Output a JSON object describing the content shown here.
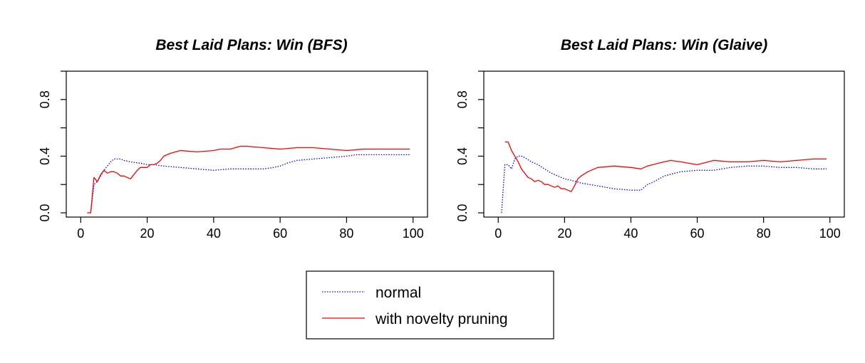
{
  "chart_data": [
    {
      "type": "line",
      "title": "Best Laid Plans: Win (BFS)",
      "xlabel": "",
      "ylabel": "",
      "xlim": [
        0,
        100
      ],
      "ylim": [
        -0.03,
        1.0
      ],
      "xticks": [
        0,
        20,
        40,
        60,
        80,
        100
      ],
      "yticks": [
        0.0,
        0.4,
        0.8
      ],
      "ytick_labels": [
        "0.0",
        "0.4",
        "0.8"
      ],
      "grid": false,
      "series": [
        {
          "name": "normal",
          "color": "#0000ff",
          "style": "dotted",
          "x": [
            2,
            3,
            4,
            5,
            6,
            7,
            8,
            9,
            10,
            11,
            12,
            13,
            15,
            18,
            20,
            22,
            25,
            30,
            35,
            40,
            45,
            50,
            55,
            58,
            60,
            62,
            65,
            70,
            75,
            80,
            83,
            86,
            90,
            95,
            99
          ],
          "y": [
            0.0,
            0.0,
            0.2,
            0.22,
            0.26,
            0.3,
            0.33,
            0.36,
            0.38,
            0.38,
            0.38,
            0.37,
            0.36,
            0.35,
            0.34,
            0.34,
            0.33,
            0.32,
            0.31,
            0.3,
            0.31,
            0.31,
            0.31,
            0.32,
            0.33,
            0.35,
            0.37,
            0.38,
            0.39,
            0.4,
            0.41,
            0.41,
            0.41,
            0.41,
            0.41
          ]
        },
        {
          "name": "with novelty pruning",
          "color": "#ff0000",
          "style": "solid",
          "x": [
            2,
            3,
            4,
            5,
            6,
            7,
            8,
            9,
            10,
            11,
            12,
            13,
            14,
            15,
            16,
            17,
            18,
            19,
            20,
            21,
            22,
            23,
            24,
            25,
            27,
            30,
            35,
            40,
            42,
            45,
            48,
            50,
            55,
            60,
            65,
            70,
            75,
            80,
            85,
            90,
            95,
            99
          ],
          "y": [
            0.0,
            0.0,
            0.25,
            0.22,
            0.27,
            0.3,
            0.28,
            0.29,
            0.29,
            0.28,
            0.26,
            0.26,
            0.25,
            0.24,
            0.27,
            0.3,
            0.32,
            0.32,
            0.32,
            0.34,
            0.34,
            0.35,
            0.37,
            0.4,
            0.42,
            0.44,
            0.43,
            0.44,
            0.45,
            0.45,
            0.47,
            0.47,
            0.46,
            0.45,
            0.46,
            0.46,
            0.45,
            0.44,
            0.45,
            0.45,
            0.45,
            0.45
          ]
        }
      ]
    },
    {
      "type": "line",
      "title": "Best Laid Plans: Win (Glaive)",
      "xlabel": "",
      "ylabel": "",
      "xlim": [
        0,
        100
      ],
      "ylim": [
        -0.03,
        1.0
      ],
      "xticks": [
        0,
        20,
        40,
        60,
        80,
        100
      ],
      "yticks": [
        0.0,
        0.4,
        0.8
      ],
      "ytick_labels": [
        "0.0",
        "0.4",
        "0.8"
      ],
      "grid": false,
      "series": [
        {
          "name": "normal",
          "color": "#0000ff",
          "style": "dotted",
          "x": [
            1,
            2,
            3,
            4,
            5,
            6,
            7,
            8,
            10,
            12,
            14,
            16,
            18,
            20,
            22,
            25,
            30,
            35,
            40,
            43,
            45,
            47,
            50,
            55,
            60,
            65,
            70,
            75,
            80,
            85,
            90,
            95,
            99
          ],
          "y": [
            0.0,
            0.34,
            0.34,
            0.31,
            0.38,
            0.4,
            0.4,
            0.39,
            0.36,
            0.34,
            0.31,
            0.28,
            0.26,
            0.24,
            0.23,
            0.21,
            0.19,
            0.17,
            0.16,
            0.16,
            0.2,
            0.22,
            0.26,
            0.29,
            0.3,
            0.3,
            0.32,
            0.33,
            0.33,
            0.32,
            0.32,
            0.31,
            0.31
          ]
        },
        {
          "name": "with novelty pruning",
          "color": "#ff0000",
          "style": "solid",
          "x": [
            2,
            3,
            4,
            5,
            6,
            7,
            8,
            9,
            10,
            11,
            12,
            13,
            14,
            15,
            16,
            17,
            18,
            19,
            20,
            21,
            22,
            23,
            24,
            25,
            27,
            30,
            35,
            40,
            43,
            45,
            50,
            52,
            55,
            60,
            65,
            70,
            75,
            80,
            85,
            90,
            95,
            99
          ],
          "y": [
            0.5,
            0.5,
            0.44,
            0.4,
            0.36,
            0.31,
            0.28,
            0.25,
            0.24,
            0.22,
            0.23,
            0.22,
            0.2,
            0.2,
            0.19,
            0.18,
            0.19,
            0.17,
            0.17,
            0.16,
            0.15,
            0.19,
            0.24,
            0.26,
            0.29,
            0.32,
            0.33,
            0.32,
            0.31,
            0.33,
            0.36,
            0.37,
            0.36,
            0.34,
            0.37,
            0.36,
            0.36,
            0.37,
            0.36,
            0.37,
            0.38,
            0.38
          ]
        }
      ]
    }
  ],
  "legend": {
    "placement": "bottom-center",
    "entries": [
      {
        "label": "normal",
        "color": "#0000ff",
        "style": "dotted"
      },
      {
        "label": "with novelty pruning",
        "color": "#ff0000",
        "style": "solid"
      }
    ]
  }
}
